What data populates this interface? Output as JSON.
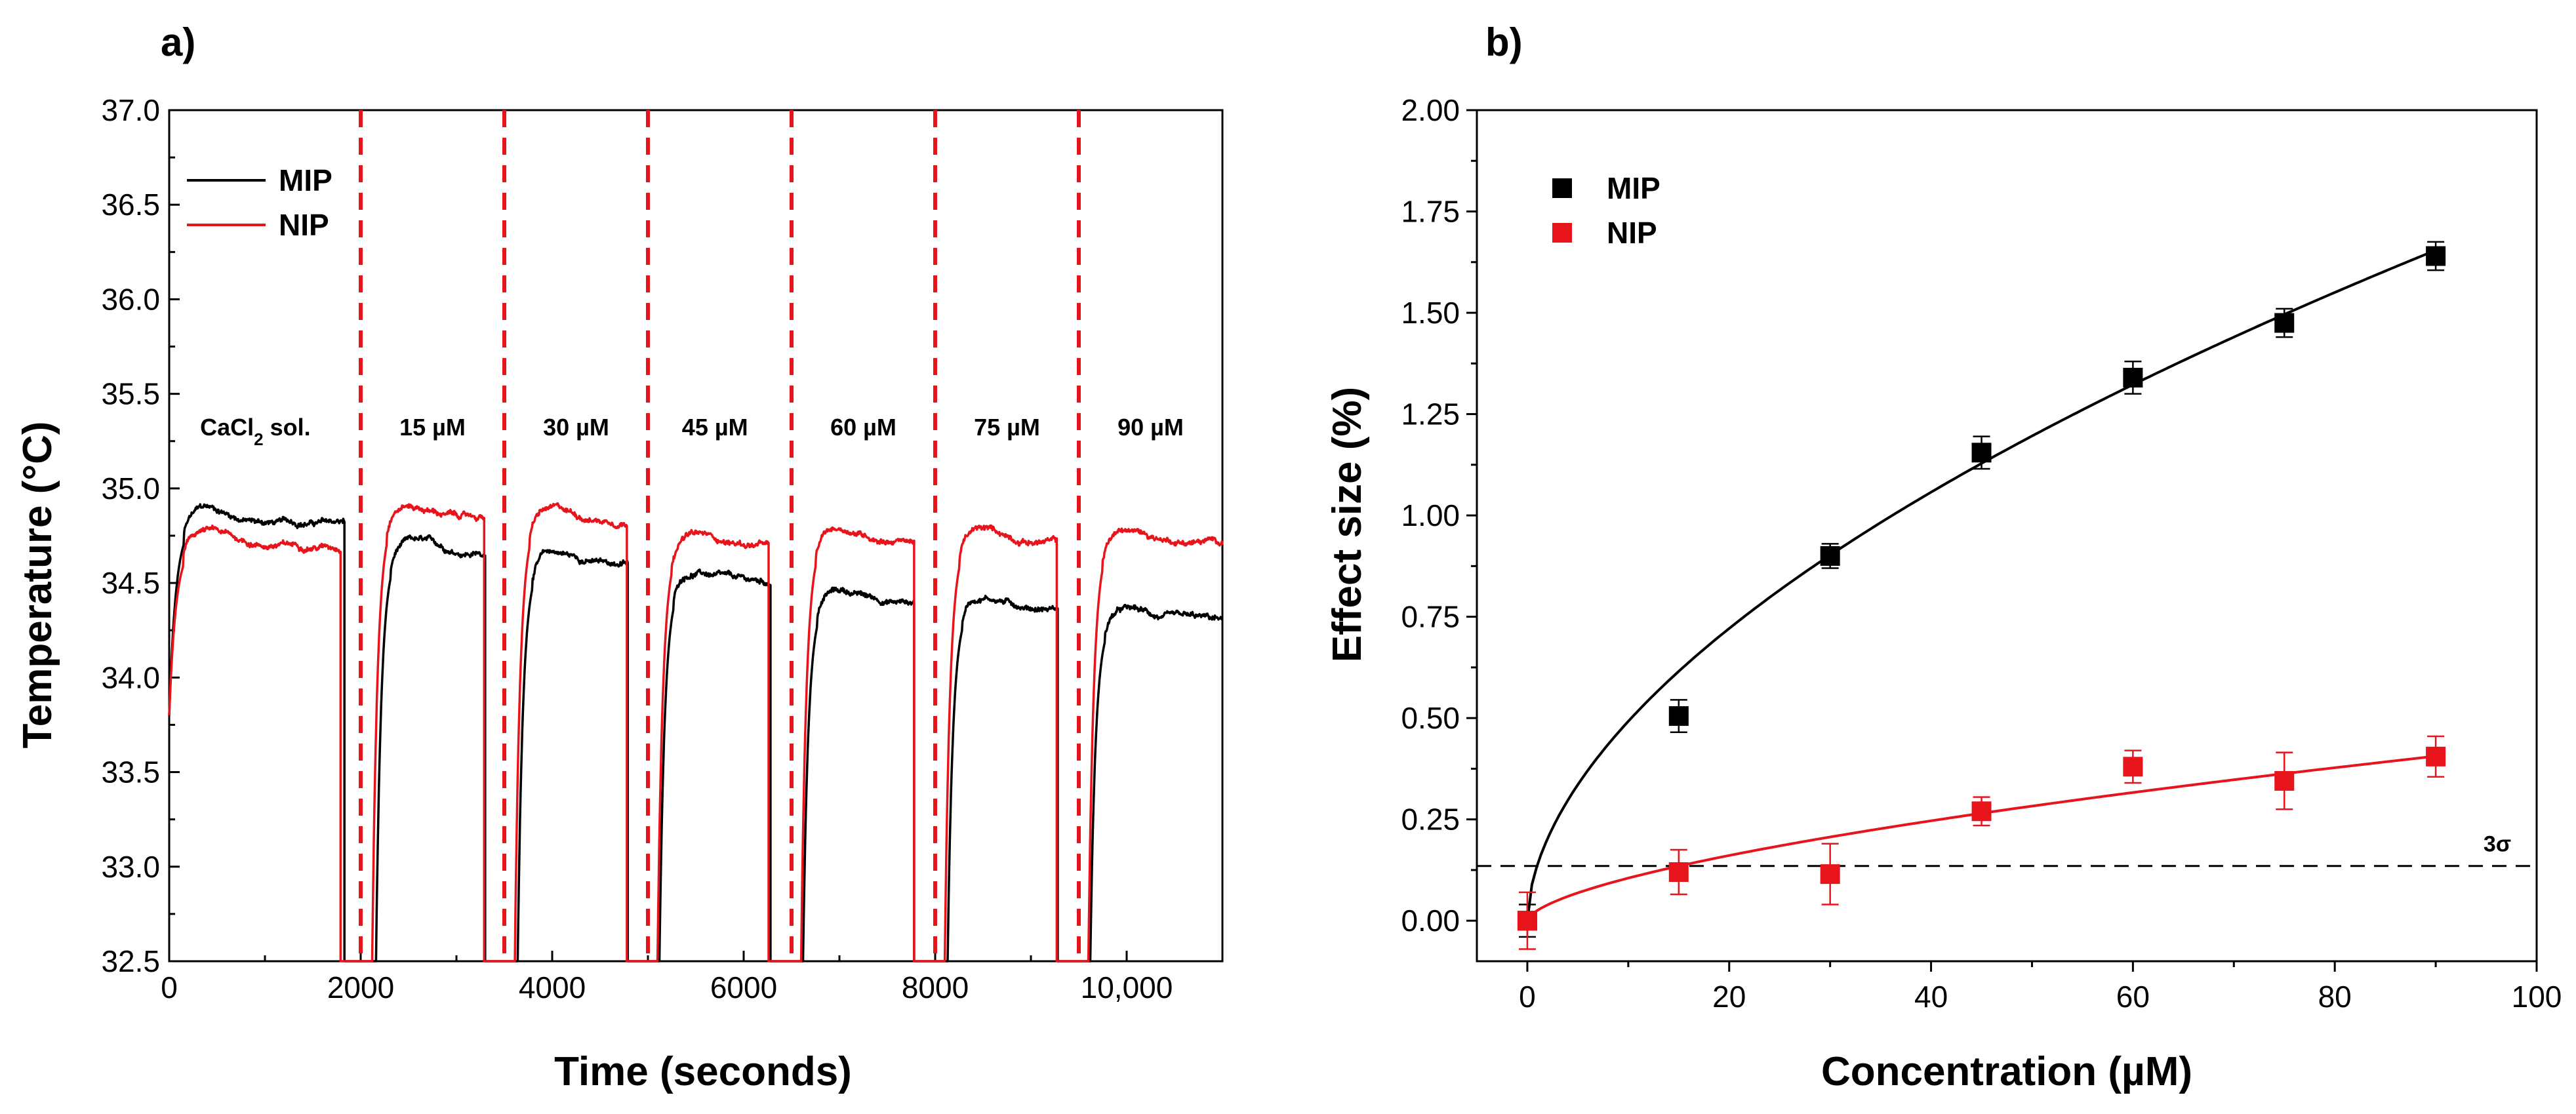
{
  "chart_data": [
    {
      "type": "line",
      "panel_label": "a)",
      "xlabel": "Time (seconds)",
      "ylabel": "Temperature (°C)",
      "xlim": [
        0,
        11000
      ],
      "ylim": [
        32.5,
        37.0
      ],
      "x_ticks": [
        0,
        2000,
        4000,
        6000,
        8000,
        10000
      ],
      "x_tick_labels": [
        "0",
        "2000",
        "4000",
        "6000",
        "8000",
        "10,000"
      ],
      "y_ticks": [
        32.5,
        33.0,
        33.5,
        34.0,
        34.5,
        35.0,
        35.5,
        36.0,
        36.5,
        37.0
      ],
      "y_tick_labels": [
        "32.5",
        "33.0",
        "33.5",
        "34.0",
        "34.5",
        "35.0",
        "35.5",
        "36.0",
        "36.5",
        "37.0"
      ],
      "legend": {
        "position": "top-left",
        "entries": [
          {
            "name": "MIP",
            "color": "#000000"
          },
          {
            "name": "NIP",
            "color": "#e8141c"
          }
        ]
      },
      "segment_boundaries": [
        2000,
        3500,
        5000,
        6500,
        8000,
        9500
      ],
      "segment_labels": [
        {
          "text": "CaCl",
          "sub": "2",
          "suffix": " sol.",
          "x": 900
        },
        {
          "text": "15 µM",
          "x": 2750
        },
        {
          "text": "30 µM",
          "x": 4250
        },
        {
          "text": "45 µM",
          "x": 5700
        },
        {
          "text": "60 µM",
          "x": 7250
        },
        {
          "text": "75 µM",
          "x": 8750
        },
        {
          "text": "90 µM",
          "x": 10250
        }
      ],
      "series": [
        {
          "name": "MIP",
          "color": "#000000",
          "segments": [
            {
              "start": 0,
              "end": 1830,
              "drop": 1830,
              "start_value": 33.8,
              "plateau": 34.82
            },
            {
              "start": 2160,
              "end": 3300,
              "drop": 3300,
              "start_value": 32.5,
              "plateau": 34.66
            },
            {
              "start": 3640,
              "end": 4790,
              "drop": 4790,
              "start_value": 32.5,
              "plateau": 34.6
            },
            {
              "start": 5120,
              "end": 6280,
              "drop": 6280,
              "start_value": 32.5,
              "plateau": 34.5
            },
            {
              "start": 6620,
              "end": 7780,
              "drop": 7780,
              "start_value": 32.5,
              "plateau": 34.4
            },
            {
              "start": 8130,
              "end": 9280,
              "drop": 9280,
              "start_value": 32.5,
              "plateau": 34.37
            },
            {
              "start": 9620,
              "end": 11000,
              "drop": null,
              "start_value": 32.5,
              "plateau": 34.3
            }
          ]
        },
        {
          "name": "NIP",
          "color": "#e8141c",
          "segments": [
            {
              "start": 0,
              "end": 1790,
              "drop": 1790,
              "start_value": 33.8,
              "plateau": 34.7
            },
            {
              "start": 2120,
              "end": 3290,
              "drop": 3290,
              "start_value": 32.5,
              "plateau": 34.85
            },
            {
              "start": 3610,
              "end": 4780,
              "drop": 4780,
              "start_value": 32.5,
              "plateau": 34.83
            },
            {
              "start": 5100,
              "end": 6260,
              "drop": 6260,
              "start_value": 32.5,
              "plateau": 34.7
            },
            {
              "start": 6600,
              "end": 7780,
              "drop": 7780,
              "start_value": 32.5,
              "plateau": 34.73
            },
            {
              "start": 8100,
              "end": 9270,
              "drop": 9270,
              "start_value": 32.5,
              "plateau": 34.72
            },
            {
              "start": 9600,
              "end": 11000,
              "drop": null,
              "start_value": 32.5,
              "plateau": 34.72
            }
          ]
        }
      ]
    },
    {
      "type": "scatter",
      "panel_label": "b)",
      "xlabel": "Concentration (µM)",
      "ylabel": "Effect size (%)",
      "xlim": [
        -5,
        100
      ],
      "ylim": [
        -0.1,
        2.0
      ],
      "x_ticks": [
        0,
        20,
        40,
        60,
        80,
        100
      ],
      "x_tick_labels": [
        "0",
        "20",
        "40",
        "60",
        "80",
        "100"
      ],
      "y_ticks": [
        0.0,
        0.25,
        0.5,
        0.75,
        1.0,
        1.25,
        1.5,
        1.75,
        2.0
      ],
      "y_tick_labels": [
        "0.00",
        "0.25",
        "0.50",
        "0.75",
        "1.00",
        "1.25",
        "1.50",
        "1.75",
        "2.00"
      ],
      "legend": {
        "position": "top-left",
        "entries": [
          {
            "name": "MIP",
            "color": "#000000"
          },
          {
            "name": "NIP",
            "color": "#e8141c"
          }
        ]
      },
      "threshold": {
        "value": 0.135,
        "label": "3σ"
      },
      "series": [
        {
          "name": "MIP",
          "color": "#000000",
          "x": [
            0,
            15,
            30,
            45,
            60,
            75,
            90
          ],
          "y": [
            0.0,
            0.505,
            0.9,
            1.155,
            1.34,
            1.475,
            1.64
          ],
          "err": [
            0.04,
            0.04,
            0.03,
            0.04,
            0.04,
            0.035,
            0.035
          ],
          "fit": {
            "a": 0.138,
            "b": 0.552
          }
        },
        {
          "name": "NIP",
          "color": "#e8141c",
          "x": [
            0,
            15,
            30,
            45,
            60,
            75,
            90
          ],
          "y": [
            0.0,
            0.12,
            0.115,
            0.27,
            0.38,
            0.345,
            0.405
          ],
          "err": [
            0.07,
            0.055,
            0.075,
            0.035,
            0.04,
            0.07,
            0.05
          ],
          "fit": {
            "a": 0.0255,
            "b": 0.615
          }
        }
      ]
    }
  ]
}
